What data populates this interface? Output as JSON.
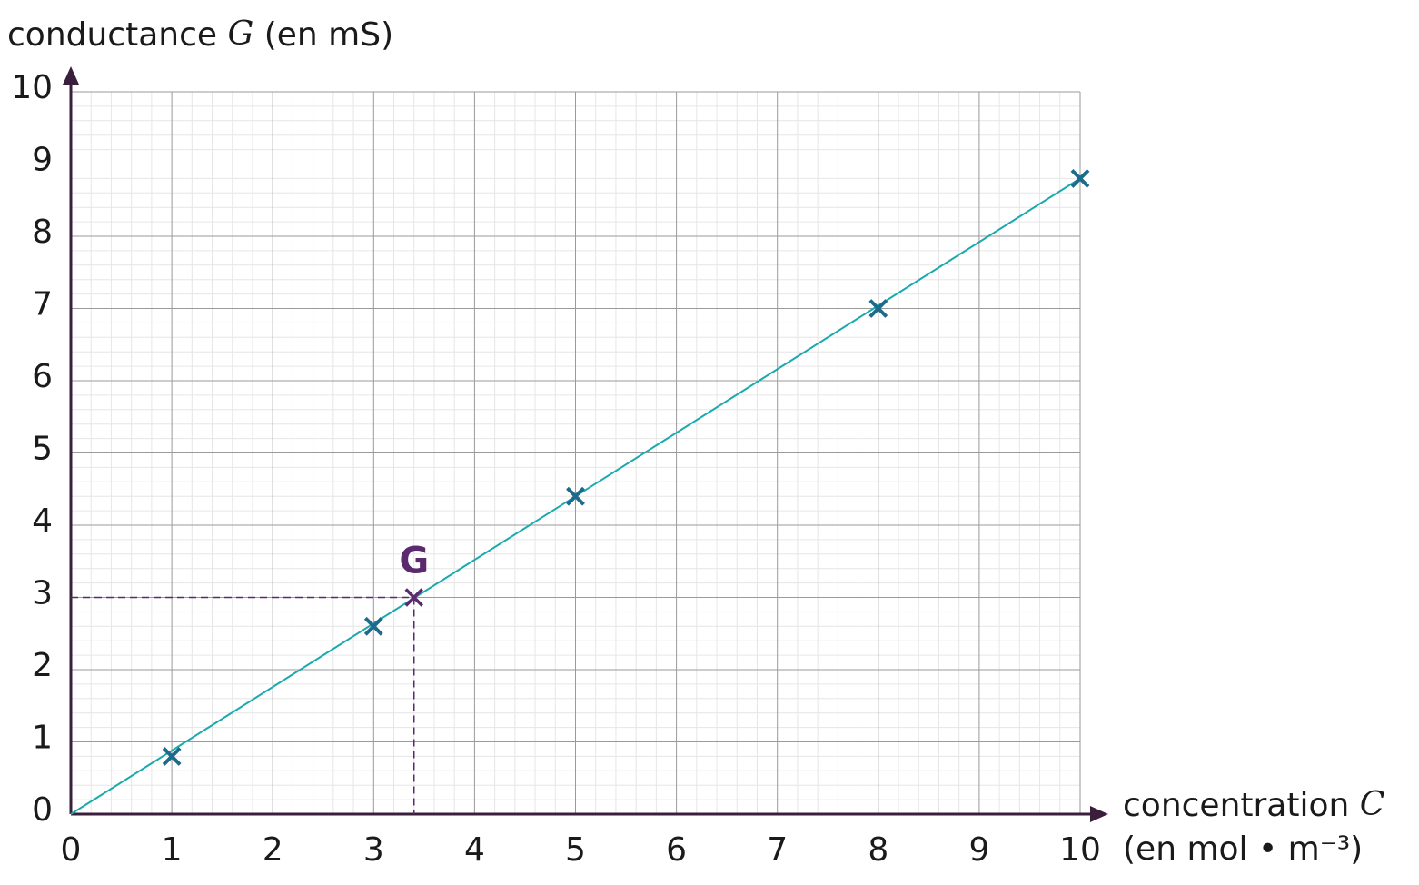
{
  "chart_data": {
    "type": "scatter",
    "y_label": [
      "conductance",
      "G",
      "(en mS)"
    ],
    "x_label": [
      "concentration",
      "C",
      "(en mol • m⁻³)"
    ],
    "xlim": [
      0,
      10
    ],
    "ylim": [
      0,
      10
    ],
    "xticks": [
      0,
      1,
      2,
      3,
      4,
      5,
      6,
      7,
      8,
      9,
      10
    ],
    "yticks": [
      0,
      1,
      2,
      3,
      4,
      5,
      6,
      7,
      8,
      9,
      10
    ],
    "grid": true,
    "minor_divisions": 5,
    "series": [
      {
        "color": "#1d6b8c",
        "x": [
          1,
          3,
          5,
          8,
          10
        ],
        "values": [
          0.8,
          2.6,
          4.4,
          7,
          8.8
        ]
      }
    ],
    "fit_line": {
      "color": "#1aa9ad",
      "x": [
        0,
        10
      ],
      "values": [
        0,
        8.8
      ]
    },
    "annotation": {
      "label": "G",
      "x": 3.4,
      "y": 3,
      "color": "#5b2a6e"
    }
  }
}
